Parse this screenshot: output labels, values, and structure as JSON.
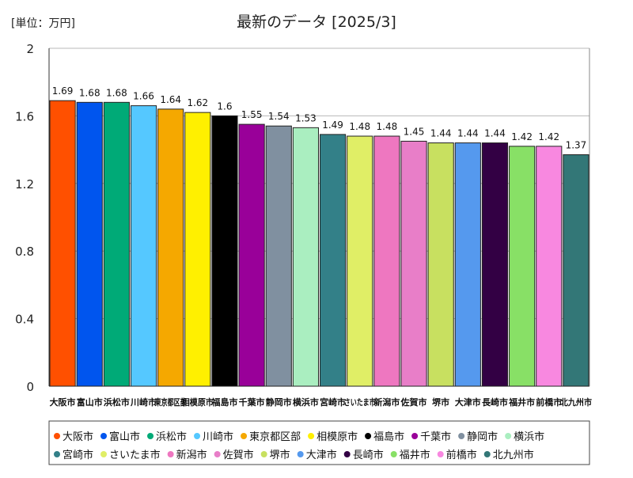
{
  "chart_data": {
    "type": "bar",
    "title": "最新のデータ [2025/3]",
    "unit_label": "[単位：万円]",
    "xlabel": "",
    "ylabel": "",
    "ylim": [
      0,
      2
    ],
    "yticks": [
      "0",
      "0.4",
      "0.8",
      "1.2",
      "1.6",
      "2"
    ],
    "grid": true,
    "legend_position": "bottom",
    "categories": [
      "大阪市",
      "富山市",
      "浜松市",
      "川崎市",
      "東京都区部",
      "相模原市",
      "福島市",
      "千葉市",
      "静岡市",
      "横浜市",
      "宮崎市",
      "さいたま市",
      "新潟市",
      "佐賀市",
      "堺市",
      "大津市",
      "長崎市",
      "福井市",
      "前橋市",
      "北九州市"
    ],
    "values": [
      1.69,
      1.68,
      1.68,
      1.66,
      1.64,
      1.62,
      1.6,
      1.55,
      1.54,
      1.53,
      1.49,
      1.48,
      1.48,
      1.45,
      1.44,
      1.44,
      1.44,
      1.42,
      1.42,
      1.37
    ],
    "value_labels": [
      "1.69",
      "1.68",
      "1.68",
      "1.66",
      "1.64",
      "1.62",
      "1.6",
      "1.55",
      "1.54",
      "1.53",
      "1.49",
      "1.48",
      "1.48",
      "1.45",
      "1.44",
      "1.44",
      "1.44",
      "1.42",
      "1.42",
      "1.37"
    ],
    "colors": [
      "#ff5000",
      "#0055ee",
      "#00aa77",
      "#55c8ff",
      "#f5a800",
      "#fff000",
      "#000000",
      "#990099",
      "#8090a0",
      "#aaeec0",
      "#338088",
      "#e0ee66",
      "#ee77c0",
      "#e87ec8",
      "#c8e060",
      "#5599ee",
      "#330044",
      "#88e066",
      "#f888e0",
      "#337777"
    ],
    "legend_rows": [
      [
        0,
        1,
        2,
        3,
        4,
        5,
        6,
        7,
        8,
        9
      ],
      [
        10,
        11,
        12,
        13,
        14,
        15,
        16,
        17,
        18,
        19
      ]
    ]
  }
}
